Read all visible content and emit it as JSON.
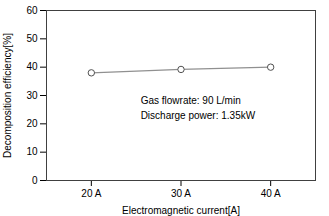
{
  "chart_data": {
    "type": "line",
    "x": [
      20,
      30,
      40
    ],
    "values": [
      38.0,
      39.2,
      40.0
    ],
    "xlabel": "Electromagnetic current[A]",
    "ylabel": "Decomposition efficiency[%]",
    "xlim": [
      15,
      45
    ],
    "xticks": [
      {
        "value": 20,
        "label": "20 A"
      },
      {
        "value": 30,
        "label": "30 A"
      },
      {
        "value": 40,
        "label": "40 A"
      }
    ],
    "ylim": [
      0,
      60
    ],
    "yticks": [
      0,
      10,
      20,
      30,
      40,
      50,
      60
    ],
    "annotations": [
      {
        "text": "Gas flowrate: 90 L/min\nDischarge power: 1.35kW",
        "x": 25.5,
        "y": 26
      }
    ],
    "color": "#909090",
    "marker": "circle"
  }
}
